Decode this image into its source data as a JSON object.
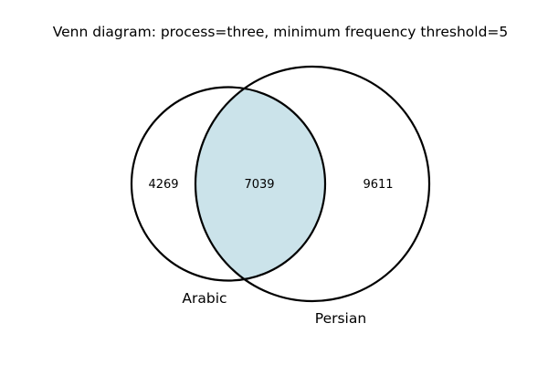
{
  "title": "Venn diagram: process=three, minimum frequency threshold=5",
  "sets": [
    {
      "name": "Arabic"
    },
    {
      "name": "Persian"
    }
  ],
  "regions": {
    "arabic_only": "4269",
    "intersection": "7039",
    "persian_only": "9611"
  },
  "colors": {
    "intersection_fill": "#cbe3ea",
    "outline": "#000000",
    "background": "#ffffff"
  }
}
